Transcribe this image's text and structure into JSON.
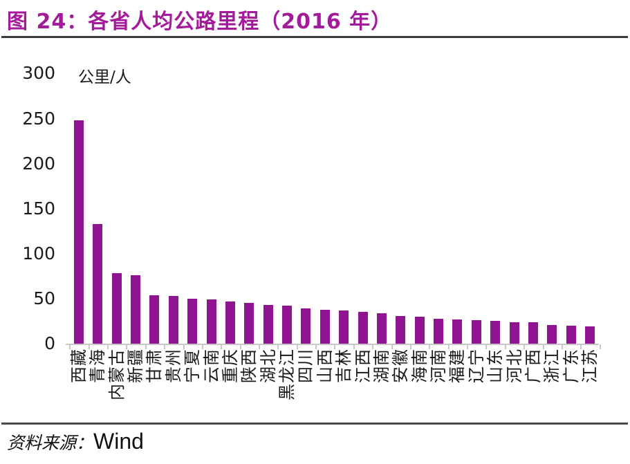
{
  "header": {
    "title": "图 24：各省人均公路里程（2016 年）"
  },
  "footer": {
    "source_label": "资料来源：",
    "source": "Wind"
  },
  "colors": {
    "title_accent": "#A31A9B",
    "bar": "#901490",
    "axis_line": "#C8C8C8",
    "text": "#1A1A1A"
  },
  "chart_data": {
    "type": "bar",
    "title": "各省人均公路里程（2016 年）",
    "ylabel": "公里/人",
    "xlabel": "",
    "categories": [
      "西藏",
      "青海",
      "内蒙古",
      "新疆",
      "甘肃",
      "贵州",
      "宁夏",
      "云南",
      "重庆",
      "陕西",
      "湖北",
      "黑龙江",
      "四川",
      "山西",
      "吉林",
      "江西",
      "湖南",
      "安徽",
      "海南",
      "河南",
      "福建",
      "辽宁",
      "山东",
      "河北",
      "广西",
      "浙江",
      "广东",
      "江苏"
    ],
    "values": [
      248,
      133,
      78,
      76,
      54,
      53,
      50,
      49,
      47,
      45,
      43,
      42,
      39,
      38,
      37,
      35,
      34,
      31,
      30,
      28,
      27,
      26,
      25,
      24,
      24,
      21,
      20,
      19
    ],
    "ylim": [
      0,
      300
    ],
    "yticks": [
      300,
      250,
      200,
      150,
      100,
      50,
      0
    ],
    "grid": false,
    "legend": false,
    "bar_color": "#901490"
  }
}
